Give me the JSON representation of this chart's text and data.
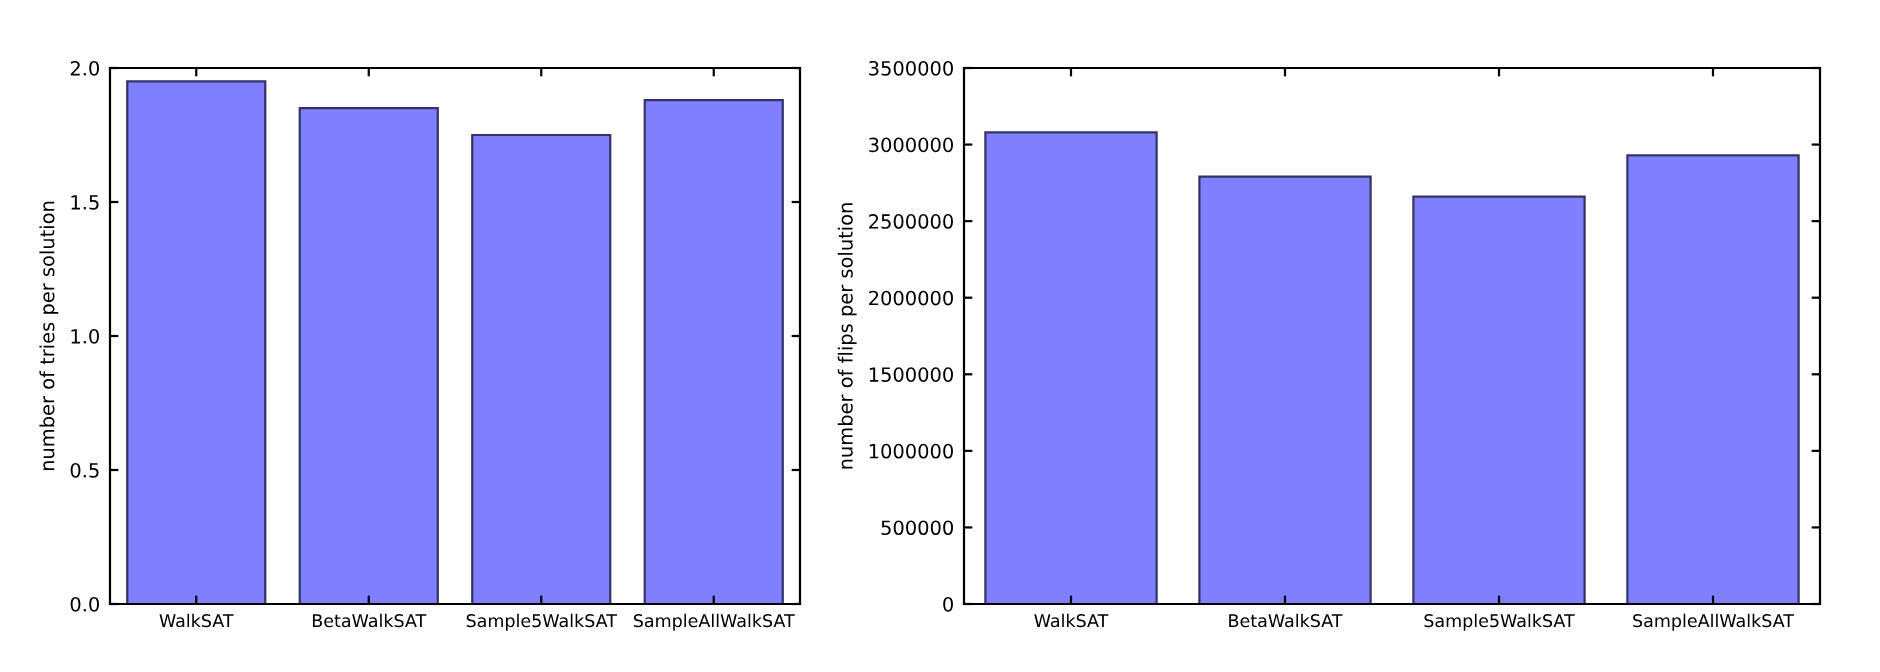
{
  "chart_data": [
    {
      "type": "bar",
      "ylabel": "number of tries per solution",
      "categories": [
        "WalkSAT",
        "BetaWalkSAT",
        "Sample5WalkSAT",
        "SampleAllWalkSAT"
      ],
      "values": [
        1.95,
        1.85,
        1.75,
        1.88
      ],
      "color": "#8080ff",
      "ylim": [
        0,
        2.0
      ],
      "yticks": [
        {
          "value": 0,
          "label": "0.0"
        },
        {
          "value": 0.5,
          "label": "0.5"
        },
        {
          "value": 1.0,
          "label": "1.0"
        },
        {
          "value": 1.5,
          "label": "1.5"
        },
        {
          "value": 2.0,
          "label": "2.0"
        }
      ],
      "grid": false
    },
    {
      "type": "bar",
      "ylabel": "number of flips per solution",
      "categories": [
        "WalkSAT",
        "BetaWalkSAT",
        "Sample5WalkSAT",
        "SampleAllWalkSAT"
      ],
      "values": [
        3080000,
        2790000,
        2660000,
        2930000
      ],
      "color": "#8080ff",
      "ylim": [
        0,
        3500000
      ],
      "yticks": [
        0,
        500000,
        1000000,
        1500000,
        2000000,
        2500000,
        3000000,
        3500000
      ],
      "grid": false
    }
  ]
}
